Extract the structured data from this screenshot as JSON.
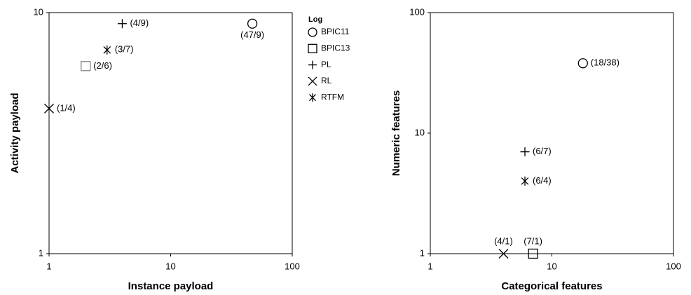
{
  "chart_data": [
    {
      "type": "scatter",
      "x_label": "Instance payload",
      "y_label": "Activity payload",
      "log_x": true,
      "log_y": true,
      "xlim": [
        1,
        100
      ],
      "ylim": [
        1,
        10
      ],
      "xticks": [
        1,
        10,
        100
      ],
      "yticks": [
        1,
        10
      ],
      "legend": true,
      "legend_title": "Log",
      "legend_position": "right",
      "series": [
        {
          "name": "BPIC11",
          "marker": "circle",
          "color": "#000000",
          "x": [
            47
          ],
          "values": [
            9
          ],
          "value_labels": [
            "(47/9)"
          ]
        },
        {
          "name": "BPIC13",
          "marker": "square",
          "color": "#808080",
          "x": [
            2
          ],
          "values": [
            6
          ],
          "value_labels": [
            "(2/6)"
          ]
        },
        {
          "name": "PL",
          "marker": "plus",
          "color": "#000000",
          "x": [
            4
          ],
          "values": [
            9
          ],
          "value_labels": [
            "(4/9)"
          ]
        },
        {
          "name": "RL",
          "marker": "x",
          "color": "#000000",
          "x": [
            1
          ],
          "values": [
            4
          ],
          "value_labels": [
            "(1/4)"
          ]
        },
        {
          "name": "RTFM",
          "marker": "asterisk",
          "color": "#000000",
          "x": [
            3
          ],
          "values": [
            7
          ],
          "value_labels": [
            "(3/7)"
          ]
        }
      ]
    },
    {
      "type": "scatter",
      "x_label": "Categorical features",
      "y_label": "Numeric features",
      "log_x": true,
      "log_y": true,
      "xlim": [
        1,
        100
      ],
      "ylim": [
        1,
        100
      ],
      "xticks": [
        1,
        10,
        100
      ],
      "yticks": [
        1,
        10,
        100
      ],
      "legend": false,
      "series": [
        {
          "name": "BPIC11",
          "marker": "circle",
          "color": "#000000",
          "x": [
            18
          ],
          "values": [
            38
          ],
          "value_labels": [
            "(18/38)"
          ]
        },
        {
          "name": "BPIC13",
          "marker": "square",
          "color": "#000000",
          "x": [
            7
          ],
          "values": [
            1
          ],
          "value_labels": [
            "(7/1)"
          ]
        },
        {
          "name": "PL",
          "marker": "plus",
          "color": "#000000",
          "x": [
            6
          ],
          "values": [
            7
          ],
          "value_labels": [
            "(6/7)"
          ]
        },
        {
          "name": "RL",
          "marker": "x",
          "color": "#000000",
          "x": [
            4
          ],
          "values": [
            1
          ],
          "value_labels": [
            "(4/1)"
          ]
        },
        {
          "name": "RTFM",
          "marker": "asterisk",
          "color": "#000000",
          "x": [
            6
          ],
          "values": [
            4
          ],
          "value_labels": [
            "(6/4)"
          ]
        }
      ]
    }
  ]
}
